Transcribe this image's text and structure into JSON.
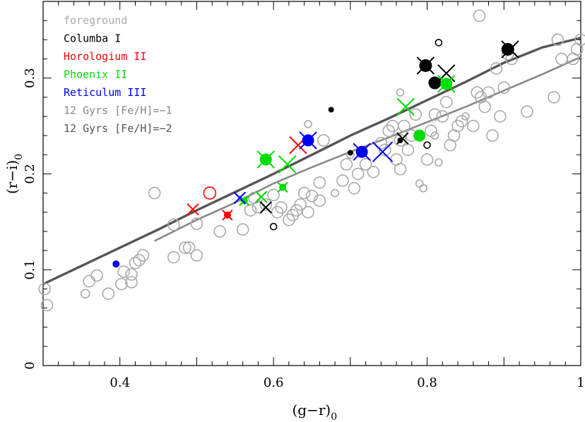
{
  "chart_data": {
    "type": "scatter",
    "xlabel": "(g−r)",
    "xlabel_sub": "0",
    "ylabel": "(r−i)",
    "ylabel_sub": "0",
    "xlim": [
      0.3,
      1.0
    ],
    "ylim": [
      0.0,
      0.38
    ],
    "xticks": [
      0.4,
      0.6,
      0.8,
      1
    ],
    "xtick_labels": [
      "0.4",
      "0.6",
      "0.8",
      "1"
    ],
    "yticks": [
      0,
      0.1,
      0.2,
      0.3
    ],
    "ytick_labels": [
      "0",
      "0.1",
      "0.2",
      "0.3"
    ],
    "legend_position": "top-left",
    "legend": [
      {
        "label": "foreground",
        "color": "#aaaaaa"
      },
      {
        "label": "Columba I",
        "color": "#000000"
      },
      {
        "label": "Horologium II",
        "color": "#ff0000"
      },
      {
        "label": "Phoenix II",
        "color": "#00dd00"
      },
      {
        "label": "Reticulum III",
        "color": "#0000ee"
      },
      {
        "label": "12 Gyrs [Fe/H]=−1",
        "color": "#888888"
      },
      {
        "label": "12 Gyrs [Fe/H]=−2",
        "color": "#555555"
      }
    ],
    "isochrones": [
      {
        "name": "12 Gyrs [Fe/H]=−1",
        "color": "#888888",
        "points": [
          [
            0.445,
            0.13
          ],
          [
            0.5,
            0.152
          ],
          [
            0.55,
            0.17
          ],
          [
            0.6,
            0.19
          ],
          [
            0.65,
            0.207
          ],
          [
            0.7,
            0.223
          ],
          [
            0.75,
            0.238
          ],
          [
            0.8,
            0.254
          ],
          [
            0.85,
            0.27
          ],
          [
            0.9,
            0.287
          ],
          [
            0.95,
            0.304
          ],
          [
            1.0,
            0.322
          ]
        ]
      },
      {
        "name": "12 Gyrs [Fe/H]=−2",
        "color": "#555555",
        "points": [
          [
            0.3,
            0.085
          ],
          [
            0.35,
            0.104
          ],
          [
            0.4,
            0.123
          ],
          [
            0.45,
            0.142
          ],
          [
            0.5,
            0.162
          ],
          [
            0.55,
            0.181
          ],
          [
            0.6,
            0.2
          ],
          [
            0.65,
            0.22
          ],
          [
            0.7,
            0.24
          ],
          [
            0.75,
            0.258
          ],
          [
            0.8,
            0.277
          ],
          [
            0.85,
            0.296
          ],
          [
            0.9,
            0.316
          ],
          [
            0.95,
            0.332
          ],
          [
            1.0,
            0.342
          ]
        ]
      }
    ],
    "series": [
      {
        "name": "foreground",
        "color": "#aaaaaa",
        "marker": "open-circle",
        "points": [
          [
            0.302,
            0.08,
            16
          ],
          [
            0.305,
            0.063,
            16
          ],
          [
            0.355,
            0.075,
            12
          ],
          [
            0.36,
            0.088,
            16
          ],
          [
            0.37,
            0.094,
            16
          ],
          [
            0.385,
            0.075,
            16
          ],
          [
            0.402,
            0.085,
            16
          ],
          [
            0.405,
            0.098,
            16
          ],
          [
            0.415,
            0.095,
            16
          ],
          [
            0.415,
            0.087,
            16
          ],
          [
            0.42,
            0.107,
            16
          ],
          [
            0.425,
            0.11,
            16
          ],
          [
            0.43,
            0.115,
            16
          ],
          [
            0.445,
            0.18,
            16
          ],
          [
            0.47,
            0.113,
            16
          ],
          [
            0.47,
            0.147,
            16
          ],
          [
            0.485,
            0.123,
            16
          ],
          [
            0.49,
            0.123,
            16
          ],
          [
            0.5,
            0.115,
            16
          ],
          [
            0.5,
            0.148,
            16
          ],
          [
            0.53,
            0.14,
            16
          ],
          [
            0.56,
            0.142,
            16
          ],
          [
            0.57,
            0.162,
            16
          ],
          [
            0.575,
            0.175,
            16
          ],
          [
            0.58,
            0.165,
            16
          ],
          [
            0.59,
            0.168,
            16
          ],
          [
            0.6,
            0.178,
            16
          ],
          [
            0.605,
            0.16,
            16
          ],
          [
            0.61,
            0.165,
            16
          ],
          [
            0.62,
            0.152,
            16
          ],
          [
            0.625,
            0.157,
            16
          ],
          [
            0.63,
            0.162,
            16
          ],
          [
            0.635,
            0.168,
            16
          ],
          [
            0.64,
            0.18,
            16
          ],
          [
            0.645,
            0.16,
            16
          ],
          [
            0.65,
            0.177,
            16
          ],
          [
            0.66,
            0.172,
            16
          ],
          [
            0.66,
            0.191,
            16
          ],
          [
            0.665,
            0.235,
            16
          ],
          [
            0.645,
            0.252,
            10
          ],
          [
            0.68,
            0.18,
            10
          ],
          [
            0.69,
            0.193,
            16
          ],
          [
            0.695,
            0.21,
            16
          ],
          [
            0.7,
            0.22,
            10
          ],
          [
            0.705,
            0.185,
            16
          ],
          [
            0.71,
            0.2,
            16
          ],
          [
            0.72,
            0.21,
            16
          ],
          [
            0.73,
            0.202,
            16
          ],
          [
            0.74,
            0.232,
            16
          ],
          [
            0.745,
            0.225,
            16
          ],
          [
            0.75,
            0.245,
            16
          ],
          [
            0.755,
            0.25,
            16
          ],
          [
            0.76,
            0.215,
            16
          ],
          [
            0.765,
            0.205,
            16
          ],
          [
            0.765,
            0.235,
            16
          ],
          [
            0.765,
            0.285,
            10
          ],
          [
            0.77,
            0.25,
            16
          ],
          [
            0.775,
            0.225,
            16
          ],
          [
            0.78,
            0.24,
            16
          ],
          [
            0.785,
            0.262,
            16
          ],
          [
            0.79,
            0.19,
            10
          ],
          [
            0.795,
            0.185,
            10
          ],
          [
            0.8,
            0.215,
            16
          ],
          [
            0.805,
            0.245,
            16
          ],
          [
            0.81,
            0.262,
            16
          ],
          [
            0.81,
            0.24,
            10
          ],
          [
            0.815,
            0.212,
            10
          ],
          [
            0.82,
            0.26,
            16
          ],
          [
            0.825,
            0.275,
            16
          ],
          [
            0.83,
            0.23,
            16
          ],
          [
            0.835,
            0.24,
            16
          ],
          [
            0.84,
            0.25,
            16
          ],
          [
            0.845,
            0.255,
            16
          ],
          [
            0.85,
            0.26,
            10
          ],
          [
            0.86,
            0.25,
            16
          ],
          [
            0.865,
            0.285,
            16
          ],
          [
            0.868,
            0.365,
            16
          ],
          [
            0.87,
            0.28,
            16
          ],
          [
            0.875,
            0.27,
            16
          ],
          [
            0.88,
            0.285,
            16
          ],
          [
            0.885,
            0.24,
            16
          ],
          [
            0.89,
            0.31,
            16
          ],
          [
            0.895,
            0.26,
            16
          ],
          [
            0.9,
            0.29,
            16
          ],
          [
            0.905,
            0.325,
            16
          ],
          [
            0.91,
            0.32,
            16
          ],
          [
            0.93,
            0.265,
            16
          ],
          [
            0.965,
            0.28,
            16
          ],
          [
            0.97,
            0.34,
            16
          ],
          [
            0.975,
            0.32,
            16
          ],
          [
            0.99,
            0.32,
            16
          ],
          [
            0.995,
            0.33,
            16
          ],
          [
            1.0,
            0.34,
            16
          ]
        ]
      },
      {
        "name": "Columba I",
        "color": "#000000",
        "points": [
          {
            "x": 0.675,
            "y": 0.267,
            "m": "dot",
            "s": 8
          },
          {
            "x": 0.7,
            "y": 0.222,
            "m": "dot",
            "s": 8
          },
          {
            "x": 0.6,
            "y": 0.145,
            "m": "open",
            "s": 9
          },
          {
            "x": 0.815,
            "y": 0.337,
            "m": "open",
            "s": 9
          },
          {
            "x": 0.8,
            "y": 0.23,
            "m": "open",
            "s": 9
          },
          {
            "x": 0.59,
            "y": 0.165,
            "m": "cross",
            "s": 16
          },
          {
            "x": 0.768,
            "y": 0.237,
            "m": "cross",
            "s": 16
          },
          {
            "x": 0.765,
            "y": 0.235,
            "m": "dot",
            "s": 8
          },
          {
            "x": 0.798,
            "y": 0.313,
            "m": "dot",
            "s": 18
          },
          {
            "x": 0.798,
            "y": 0.313,
            "m": "cross",
            "s": 24
          },
          {
            "x": 0.81,
            "y": 0.295,
            "m": "dot",
            "s": 18
          },
          {
            "x": 0.825,
            "y": 0.305,
            "m": "cross",
            "s": 24
          },
          {
            "x": 0.905,
            "y": 0.33,
            "m": "dot",
            "s": 18
          },
          {
            "x": 0.908,
            "y": 0.33,
            "m": "cross",
            "s": 24
          }
        ]
      },
      {
        "name": "Horologium II",
        "color": "#ff0000",
        "points": [
          {
            "x": 0.517,
            "y": 0.18,
            "m": "open",
            "s": 17
          },
          {
            "x": 0.495,
            "y": 0.163,
            "m": "cross",
            "s": 16
          },
          {
            "x": 0.54,
            "y": 0.157,
            "m": "dot",
            "s": 10
          },
          {
            "x": 0.54,
            "y": 0.157,
            "m": "cross",
            "s": 14
          },
          {
            "x": 0.632,
            "y": 0.23,
            "m": "cross",
            "s": 24
          }
        ]
      },
      {
        "name": "Phoenix II",
        "color": "#00dd00",
        "points": [
          {
            "x": 0.59,
            "y": 0.215,
            "m": "dot",
            "s": 17
          },
          {
            "x": 0.59,
            "y": 0.215,
            "m": "cross",
            "s": 24
          },
          {
            "x": 0.618,
            "y": 0.21,
            "m": "cross",
            "s": 24
          },
          {
            "x": 0.562,
            "y": 0.172,
            "m": "dot",
            "s": 10
          },
          {
            "x": 0.562,
            "y": 0.172,
            "m": "cross",
            "s": 14
          },
          {
            "x": 0.612,
            "y": 0.186,
            "m": "dot",
            "s": 10
          },
          {
            "x": 0.612,
            "y": 0.186,
            "m": "cross",
            "s": 14
          },
          {
            "x": 0.584,
            "y": 0.176,
            "m": "cross",
            "s": 16
          },
          {
            "x": 0.772,
            "y": 0.27,
            "m": "cross",
            "s": 24
          },
          {
            "x": 0.79,
            "y": 0.24,
            "m": "dot",
            "s": 17
          },
          {
            "x": 0.825,
            "y": 0.294,
            "m": "dot",
            "s": 17
          },
          {
            "x": 0.825,
            "y": 0.294,
            "m": "cross",
            "s": 24
          }
        ]
      },
      {
        "name": "Reticulum III",
        "color": "#0000ee",
        "points": [
          {
            "x": 0.395,
            "y": 0.106,
            "m": "dot",
            "s": 10
          },
          {
            "x": 0.556,
            "y": 0.175,
            "m": "cross",
            "s": 16
          },
          {
            "x": 0.645,
            "y": 0.235,
            "m": "dot",
            "s": 17
          },
          {
            "x": 0.645,
            "y": 0.235,
            "m": "cross",
            "s": 24
          },
          {
            "x": 0.715,
            "y": 0.223,
            "m": "dot",
            "s": 17
          },
          {
            "x": 0.715,
            "y": 0.223,
            "m": "cross",
            "s": 24
          },
          {
            "x": 0.742,
            "y": 0.223,
            "m": "cross",
            "s": 28
          }
        ]
      }
    ]
  }
}
